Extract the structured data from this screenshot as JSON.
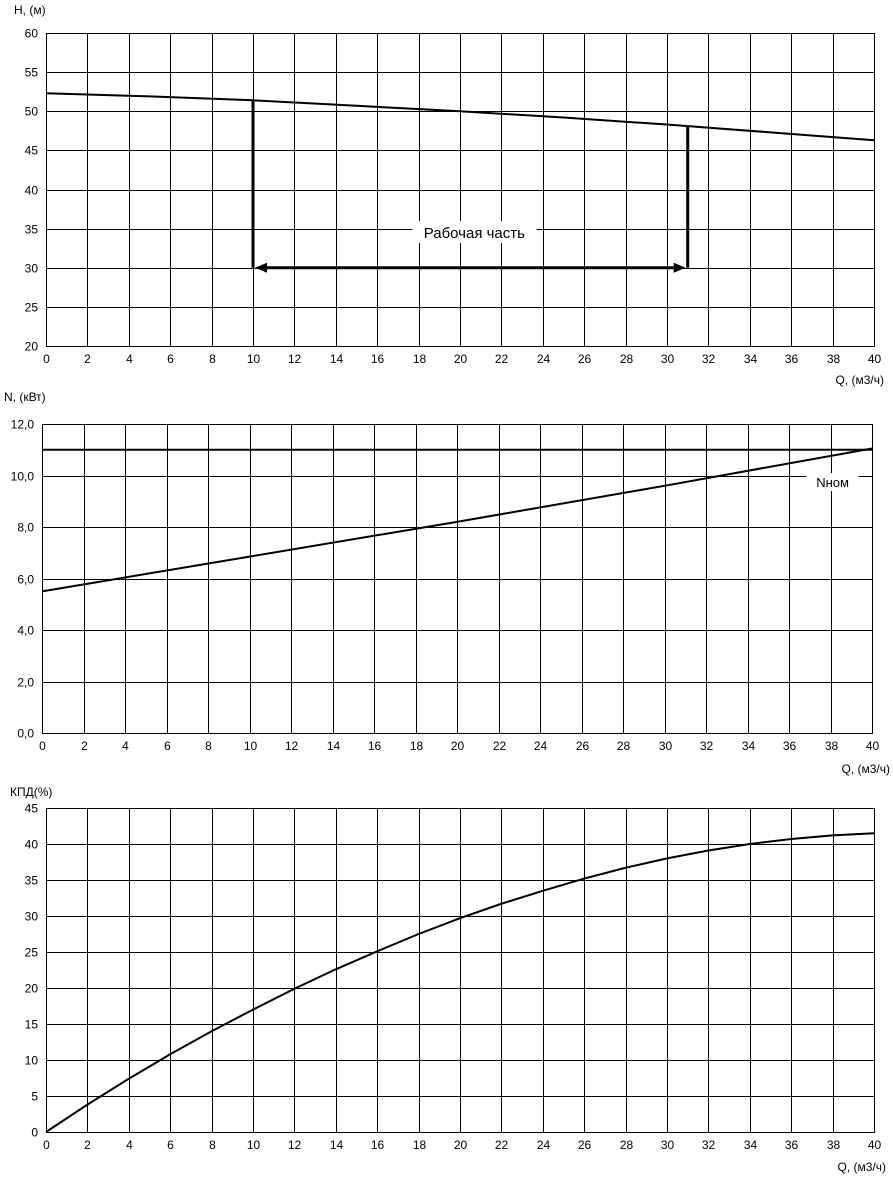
{
  "chart_data": [
    {
      "id": "head",
      "type": "line",
      "ylabel": "H, (м)",
      "xlabel": "Q, (м3/ч)",
      "xlim": [
        0,
        40
      ],
      "ylim": [
        20,
        60
      ],
      "xticks": [
        0,
        2,
        4,
        6,
        8,
        10,
        12,
        14,
        16,
        18,
        20,
        22,
        24,
        26,
        28,
        30,
        32,
        34,
        36,
        38,
        40
      ],
      "yticks": [
        20,
        25,
        30,
        35,
        40,
        45,
        50,
        55,
        60
      ],
      "grid": true,
      "series": [
        {
          "x": [
            0,
            5,
            10,
            15,
            20,
            25,
            30,
            35,
            40
          ],
          "y": [
            52.3,
            51.9,
            51.4,
            50.7,
            50.0,
            49.2,
            48.3,
            47.3,
            46.3
          ]
        }
      ],
      "annotation": {
        "text": "Рабочая часть",
        "q_start": 10,
        "q_end": 31,
        "h_start": 51.4,
        "h_end": 48.1,
        "arrow_h": 30
      }
    },
    {
      "id": "power",
      "type": "line",
      "ylabel": "N, (кВт)",
      "xlabel": "Q, (м3/ч)",
      "xlim": [
        0,
        40
      ],
      "ylim": [
        0,
        12
      ],
      "xticks": [
        0,
        2,
        4,
        6,
        8,
        10,
        12,
        14,
        16,
        18,
        20,
        22,
        24,
        26,
        28,
        30,
        32,
        34,
        36,
        38,
        40
      ],
      "yticks": [
        "0,0",
        "2,0",
        "4,0",
        "6,0",
        "8,0",
        "10,0",
        "12,0"
      ],
      "grid": true,
      "series": [
        {
          "x": [
            0,
            10,
            20,
            30,
            40
          ],
          "y": [
            5.5,
            6.85,
            8.2,
            9.6,
            11.05
          ]
        }
      ],
      "nominal": {
        "label": "Nном",
        "value": 11.0
      }
    },
    {
      "id": "efficiency",
      "type": "line",
      "ylabel": "КПД(%)",
      "xlabel": "Q, (м3/ч)",
      "xlim": [
        0,
        40
      ],
      "ylim": [
        0,
        45
      ],
      "xticks": [
        0,
        2,
        4,
        6,
        8,
        10,
        12,
        14,
        16,
        18,
        20,
        22,
        24,
        26,
        28,
        30,
        32,
        34,
        36,
        38,
        40
      ],
      "yticks": [
        0,
        5,
        10,
        15,
        20,
        25,
        30,
        35,
        40,
        45
      ],
      "grid": true,
      "series": [
        {
          "x": [
            0,
            2,
            4,
            6,
            8,
            10,
            12,
            14,
            16,
            18,
            20,
            22,
            24,
            26,
            28,
            30,
            32,
            34,
            36,
            38,
            40
          ],
          "y": [
            0,
            3.8,
            7.4,
            10.8,
            14.0,
            17.0,
            19.9,
            22.6,
            25.1,
            27.5,
            29.7,
            31.7,
            33.5,
            35.2,
            36.7,
            38.0,
            39.1,
            40.0,
            40.7,
            41.2,
            41.5
          ]
        }
      ]
    }
  ]
}
